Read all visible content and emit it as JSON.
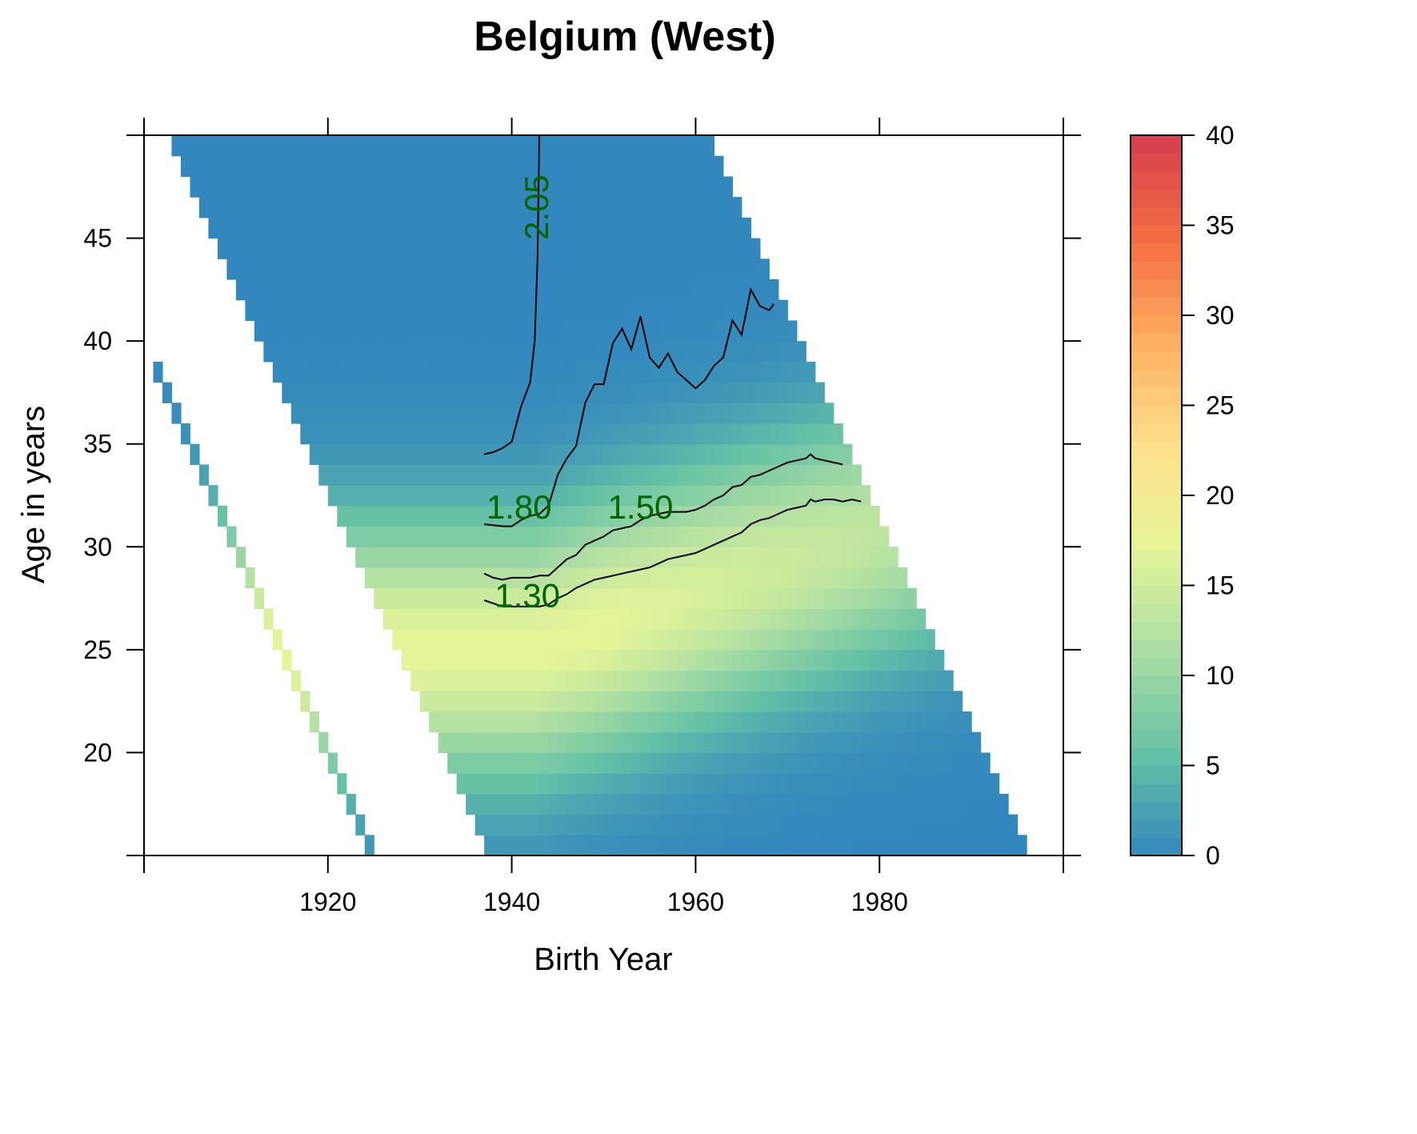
{
  "chart_data": {
    "type": "heatmap",
    "title": "Belgium (West)",
    "xlabel": "Birth Year",
    "ylabel": "Age in years",
    "xlim": [
      1900,
      2000
    ],
    "ylim": [
      15,
      50
    ],
    "x_ticks": [
      1920,
      1940,
      1960,
      1980
    ],
    "y_ticks": [
      20,
      25,
      30,
      35,
      40,
      45
    ],
    "colorbar": {
      "ticks": [
        0,
        5,
        10,
        15,
        20,
        25,
        30,
        35,
        40
      ],
      "range": [
        0,
        40
      ],
      "colors": [
        "#3288bd",
        "#66c2a5",
        "#abdda4",
        "#e6f598",
        "#fee08b",
        "#fdae61",
        "#f46d43",
        "#d53e4f"
      ]
    },
    "contours": [
      {
        "label": "2.05",
        "points": [
          [
            1937,
            34.5
          ],
          [
            1938,
            34.6
          ],
          [
            1939,
            34.8
          ],
          [
            1940,
            35.1
          ],
          [
            1941,
            36.8
          ],
          [
            1942,
            38.0
          ],
          [
            1942.5,
            40.0
          ],
          [
            1942.8,
            44.0
          ],
          [
            1943,
            50.0
          ]
        ]
      },
      {
        "label": "1.80",
        "points": [
          [
            1937,
            31.1
          ],
          [
            1938,
            31.05
          ],
          [
            1939,
            31.0
          ],
          [
            1940,
            31.0
          ],
          [
            1941,
            31.3
          ],
          [
            1942,
            31.5
          ],
          [
            1943,
            31.6
          ],
          [
            1944,
            32.0
          ],
          [
            1945,
            33.5
          ],
          [
            1946,
            34.3
          ],
          [
            1947,
            34.9
          ],
          [
            1948,
            37.0
          ],
          [
            1949,
            37.9
          ],
          [
            1950,
            37.9
          ],
          [
            1951,
            39.9
          ],
          [
            1952,
            40.6
          ],
          [
            1953,
            39.6
          ],
          [
            1954,
            41.2
          ],
          [
            1955,
            39.2
          ],
          [
            1956,
            38.7
          ],
          [
            1957,
            39.4
          ],
          [
            1958,
            38.5
          ],
          [
            1959,
            38.1
          ],
          [
            1960,
            37.7
          ],
          [
            1961,
            38.1
          ],
          [
            1962,
            38.8
          ],
          [
            1963,
            39.2
          ],
          [
            1964,
            41.0
          ],
          [
            1965,
            40.3
          ],
          [
            1966,
            42.5
          ],
          [
            1967,
            41.7
          ],
          [
            1968,
            41.5
          ],
          [
            1968.5,
            41.8
          ]
        ]
      },
      {
        "label": "1.50",
        "points": [
          [
            1937,
            28.7
          ],
          [
            1938,
            28.5
          ],
          [
            1939,
            28.4
          ],
          [
            1940,
            28.5
          ],
          [
            1941,
            28.5
          ],
          [
            1942,
            28.5
          ],
          [
            1943,
            28.6
          ],
          [
            1944,
            28.6
          ],
          [
            1945,
            29.0
          ],
          [
            1946,
            29.4
          ],
          [
            1947,
            29.6
          ],
          [
            1948,
            30.1
          ],
          [
            1949,
            30.3
          ],
          [
            1950,
            30.5
          ],
          [
            1951,
            30.8
          ],
          [
            1952,
            30.9
          ],
          [
            1953,
            31.0
          ],
          [
            1954,
            31.3
          ],
          [
            1955,
            31.5
          ],
          [
            1956,
            31.6
          ],
          [
            1957,
            31.7
          ],
          [
            1958,
            31.7
          ],
          [
            1959,
            31.7
          ],
          [
            1960,
            31.8
          ],
          [
            1961,
            32.0
          ],
          [
            1962,
            32.3
          ],
          [
            1963,
            32.5
          ],
          [
            1964,
            32.9
          ],
          [
            1965,
            33.0
          ],
          [
            1966,
            33.4
          ],
          [
            1967,
            33.5
          ],
          [
            1968,
            33.7
          ],
          [
            1969,
            33.9
          ],
          [
            1970,
            34.1
          ],
          [
            1971,
            34.2
          ],
          [
            1972,
            34.3
          ],
          [
            1972.5,
            34.5
          ],
          [
            1973,
            34.3
          ],
          [
            1974,
            34.2
          ],
          [
            1975,
            34.1
          ],
          [
            1976,
            34.0
          ]
        ]
      },
      {
        "label": "1.30",
        "points": [
          [
            1937,
            27.4
          ],
          [
            1938,
            27.25
          ],
          [
            1939,
            27.1
          ],
          [
            1940,
            27.1
          ],
          [
            1941,
            27.1
          ],
          [
            1942,
            27.1
          ],
          [
            1943,
            27.1
          ],
          [
            1944,
            27.2
          ],
          [
            1945,
            27.5
          ],
          [
            1946,
            27.7
          ],
          [
            1947,
            28.0
          ],
          [
            1948,
            28.2
          ],
          [
            1949,
            28.4
          ],
          [
            1950,
            28.5
          ],
          [
            1951,
            28.6
          ],
          [
            1952,
            28.7
          ],
          [
            1953,
            28.8
          ],
          [
            1954,
            28.9
          ],
          [
            1955,
            29.0
          ],
          [
            1956,
            29.2
          ],
          [
            1957,
            29.4
          ],
          [
            1958,
            29.5
          ],
          [
            1959,
            29.6
          ],
          [
            1960,
            29.7
          ],
          [
            1961,
            29.9
          ],
          [
            1962,
            30.1
          ],
          [
            1963,
            30.3
          ],
          [
            1964,
            30.5
          ],
          [
            1965,
            30.7
          ],
          [
            1966,
            31.1
          ],
          [
            1967,
            31.3
          ],
          [
            1968,
            31.4
          ],
          [
            1969,
            31.6
          ],
          [
            1970,
            31.8
          ],
          [
            1971,
            31.9
          ],
          [
            1972,
            32.0
          ],
          [
            1972.5,
            32.3
          ],
          [
            1973,
            32.2
          ],
          [
            1974,
            32.3
          ],
          [
            1975,
            32.3
          ],
          [
            1976,
            32.2
          ],
          [
            1977,
            32.3
          ],
          [
            1978,
            32.2
          ]
        ]
      }
    ]
  }
}
